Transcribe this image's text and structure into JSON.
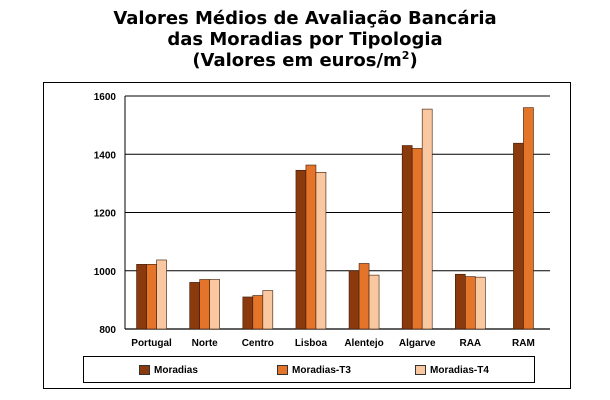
{
  "title": {
    "line1": "Valores Médios de Avaliação Bancária",
    "line2": "das Moradias por Tipologia",
    "line3_pre": "(Valores em euros/m",
    "line3_sup": "2",
    "line3_post": ")"
  },
  "colors": {
    "moradias": "#8B3A0E",
    "moradias_t3": "#E4742A",
    "moradias_t4": "#F9C7A0"
  },
  "chart_data": {
    "type": "bar",
    "categories": [
      "Portugal",
      "Norte",
      "Centro",
      "Lisboa",
      "Alentejo",
      "Algarve",
      "RAA",
      "RAM"
    ],
    "series": [
      {
        "name": "Moradias",
        "values": [
          1022,
          960,
          910,
          1345,
          1000,
          1430,
          988,
          1438
        ]
      },
      {
        "name": "Moradias-T3",
        "values": [
          1022,
          970,
          915,
          1363,
          1025,
          1420,
          980,
          1560
        ]
      },
      {
        "name": "Moradias-T4",
        "values": [
          1037,
          970,
          932,
          1338,
          985,
          1555,
          978,
          null
        ]
      }
    ],
    "yticks": [
      800,
      1000,
      1200,
      1400,
      1600
    ],
    "ylim": [
      800,
      1600
    ],
    "grid": true,
    "legend_position": "bottom"
  }
}
